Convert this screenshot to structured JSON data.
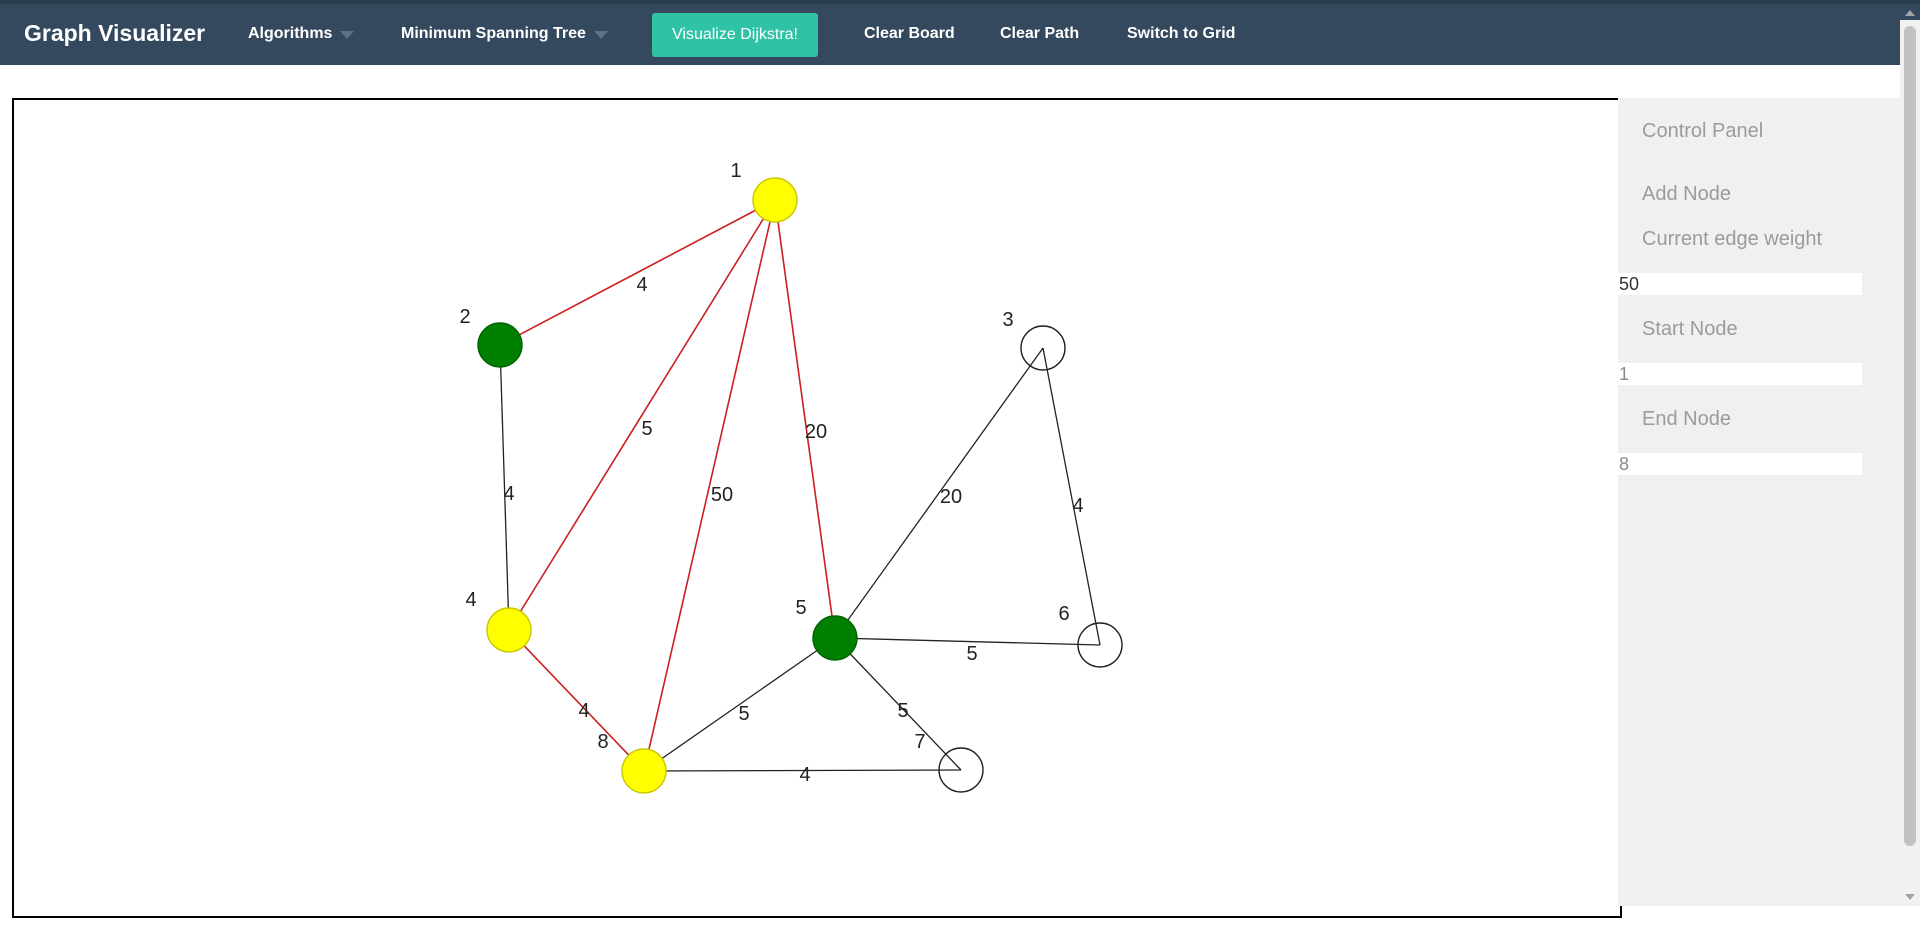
{
  "navbar": {
    "brand": "Graph Visualizer",
    "algorithms": "Algorithms",
    "mst": "Minimum Spanning Tree",
    "visualize": "Visualize Dijkstra!",
    "clear_board": "Clear Board",
    "clear_path": "Clear Path",
    "switch_grid": "Switch to Grid"
  },
  "panel": {
    "title": "Control Panel",
    "add_node": "Add Node",
    "edge_weight_label": "Current edge weight",
    "edge_weight_value": "50",
    "start_label": "Start Node",
    "start_value": "1",
    "end_label": "End Node",
    "end_value": "8"
  },
  "colors": {
    "navbar": "#34495e",
    "accent": "#2fc2a4",
    "path_node": "#ffff00",
    "visited_node": "#008000",
    "path_edge": "#cc1f1f",
    "edge": "#222222"
  },
  "graph": {
    "nodes": [
      {
        "label": "1",
        "state": "path"
      },
      {
        "label": "2",
        "state": "visited"
      },
      {
        "label": "3",
        "state": "empty"
      },
      {
        "label": "4",
        "state": "path"
      },
      {
        "label": "5",
        "state": "visited"
      },
      {
        "label": "6",
        "state": "empty"
      },
      {
        "label": "7",
        "state": "empty"
      },
      {
        "label": "8",
        "state": "path"
      }
    ],
    "edges": [
      {
        "from": "1",
        "to": "2",
        "weight": "4",
        "on_path": true
      },
      {
        "from": "1",
        "to": "4",
        "weight": "5",
        "on_path": true
      },
      {
        "from": "1",
        "to": "8",
        "weight": "50",
        "on_path": true
      },
      {
        "from": "1",
        "to": "5",
        "weight": "20",
        "on_path": true
      },
      {
        "from": "2",
        "to": "4",
        "weight": "4",
        "on_path": false
      },
      {
        "from": "4",
        "to": "8",
        "weight": "4",
        "on_path": true
      },
      {
        "from": "3",
        "to": "5",
        "weight": "20",
        "on_path": false
      },
      {
        "from": "3",
        "to": "6",
        "weight": "4",
        "on_path": false
      },
      {
        "from": "5",
        "to": "6",
        "weight": "5",
        "on_path": false
      },
      {
        "from": "5",
        "to": "8",
        "weight": "5",
        "on_path": false
      },
      {
        "from": "5",
        "to": "7",
        "weight": "5",
        "on_path": false
      },
      {
        "from": "8",
        "to": "7",
        "weight": "4",
        "on_path": false
      }
    ]
  }
}
